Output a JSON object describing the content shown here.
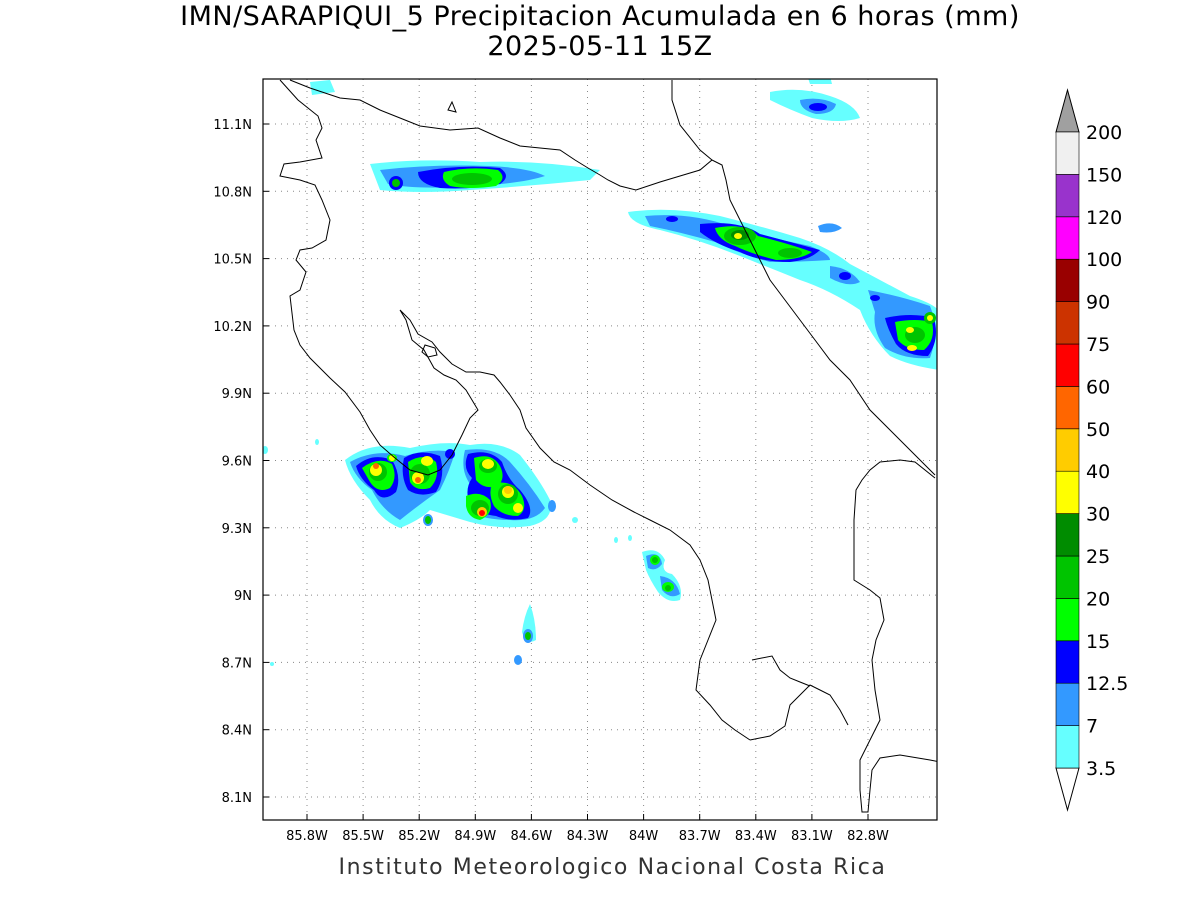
{
  "title": {
    "line1": "IMN/SARAPIQUI_5 Precipitacion Acumulada en 6 horas (mm)",
    "line2": "2025-05-11 15Z"
  },
  "map": {
    "region": "Costa Rica",
    "lon_range": [
      -86.05,
      -82.55
    ],
    "lat_range": [
      8.0,
      11.3
    ],
    "lon_ticks": [
      {
        "value": -85.8,
        "label": "85.8W"
      },
      {
        "value": -85.5,
        "label": "85.5W"
      },
      {
        "value": -85.2,
        "label": "85.2W"
      },
      {
        "value": -84.9,
        "label": "84.9W"
      },
      {
        "value": -84.6,
        "label": "84.6W"
      },
      {
        "value": -84.3,
        "label": "84.3W"
      },
      {
        "value": -84.0,
        "label": "84W"
      },
      {
        "value": -83.7,
        "label": "83.7W"
      },
      {
        "value": -83.4,
        "label": "83.4W"
      },
      {
        "value": -83.1,
        "label": "83.1W"
      },
      {
        "value": -82.8,
        "label": "82.8W"
      }
    ],
    "lat_ticks": [
      {
        "value": 11.1,
        "label": "11.1N"
      },
      {
        "value": 10.8,
        "label": "10.8N"
      },
      {
        "value": 10.5,
        "label": "10.5N"
      },
      {
        "value": 10.2,
        "label": "10.2N"
      },
      {
        "value": 9.9,
        "label": "9.9N"
      },
      {
        "value": 9.6,
        "label": "9.6N"
      },
      {
        "value": 9.3,
        "label": "9.3N"
      },
      {
        "value": 9.0,
        "label": "9N"
      },
      {
        "value": 8.7,
        "label": "8.7N"
      },
      {
        "value": 8.4,
        "label": "8.4N"
      },
      {
        "value": 8.1,
        "label": "8.1N"
      }
    ],
    "gridlines": "dotted"
  },
  "colorbar": {
    "units": "mm",
    "levels": [
      {
        "label": "3.5",
        "color": "#66ffff"
      },
      {
        "label": "7",
        "color": "#3399ff"
      },
      {
        "label": "12.5",
        "color": "#0000ff"
      },
      {
        "label": "15",
        "color": "#00ff00"
      },
      {
        "label": "20",
        "color": "#00c400"
      },
      {
        "label": "25",
        "color": "#008c00"
      },
      {
        "label": "30",
        "color": "#ffff00"
      },
      {
        "label": "40",
        "color": "#ffcc00"
      },
      {
        "label": "50",
        "color": "#ff6600"
      },
      {
        "label": "60",
        "color": "#ff0000"
      },
      {
        "label": "75",
        "color": "#cc3300"
      },
      {
        "label": "90",
        "color": "#990000"
      },
      {
        "label": "100",
        "color": "#ff00ff"
      },
      {
        "label": "120",
        "color": "#9933cc"
      },
      {
        "label": "150",
        "color": "#f0f0f0"
      },
      {
        "label": "200",
        "color": "#a0a0a0"
      }
    ],
    "min_arrow_color": "#ffffff",
    "max_arrow_color": "#a0a0a0"
  },
  "footer": "Instituto Meteorologico Nacional Costa Rica"
}
